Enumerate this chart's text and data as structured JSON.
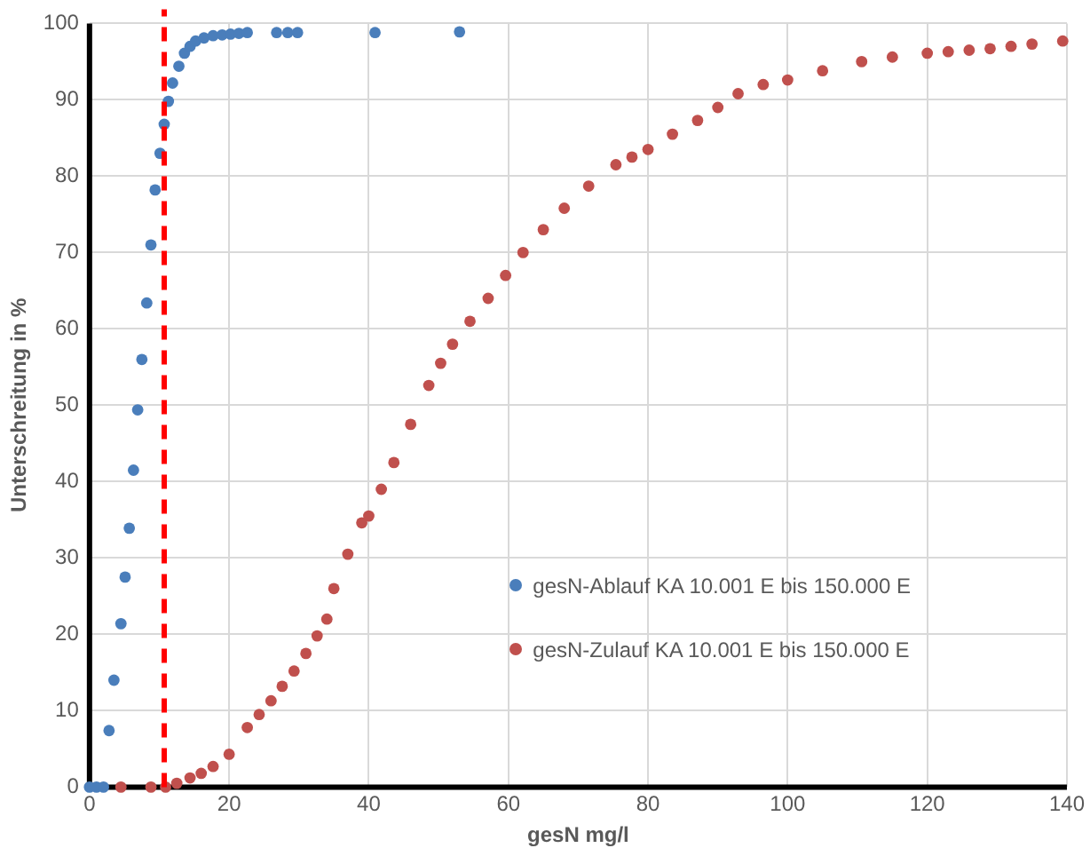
{
  "chart_data": {
    "type": "scatter",
    "xlabel": "gesN mg/l",
    "ylabel": "Unterschreitung in %",
    "xlim": [
      0,
      140
    ],
    "xticks": [
      0,
      20,
      40,
      60,
      80,
      100,
      120,
      140
    ],
    "ylim": [
      0,
      100
    ],
    "yticks": [
      0,
      10,
      20,
      30,
      40,
      50,
      60,
      70,
      80,
      90,
      100
    ],
    "grid": true,
    "legend": "bottom right",
    "marker": "circle",
    "ref_lines": [
      {
        "axis": "x",
        "value": 10.7,
        "color": "#ff0000",
        "line_style": "dashed"
      }
    ],
    "series": [
      {
        "name": "gesN-Ablauf KA 10.001 E bis 150.000 E",
        "color": "#4a7ebb",
        "x": [
          0,
          1,
          2,
          2.8,
          3.5,
          4.5,
          5.1,
          5.7,
          6.3,
          6.9,
          7.5,
          8.2,
          8.8,
          9.4,
          10.1,
          10.7,
          11.3,
          11.9,
          12.8,
          13.6,
          14.4,
          15.2,
          16.4,
          17.7,
          19,
          20.2,
          21.4,
          22.6,
          26.8,
          28.4,
          29.8,
          40.9,
          53
        ],
        "values": [
          0,
          0,
          0,
          7.4,
          14,
          21.4,
          27.5,
          33.9,
          41.5,
          49.4,
          56,
          63.4,
          71,
          78.2,
          83,
          86.8,
          89.8,
          92.2,
          94.4,
          96.1,
          97,
          97.7,
          98.1,
          98.4,
          98.5,
          98.6,
          98.7,
          98.8,
          98.8,
          98.8,
          98.8,
          98.8,
          98.9
        ]
      },
      {
        "name": "gesN-Zulauf KA 10.001 E bis 150.000 E",
        "color": "#c0504d",
        "x": [
          4.5,
          8.8,
          10.9,
          12.5,
          14.4,
          16,
          17.7,
          20,
          22.6,
          24.3,
          26,
          27.6,
          29.3,
          31,
          32.6,
          34,
          35,
          37,
          39,
          40,
          41.8,
          43.6,
          46,
          48.6,
          50.3,
          52,
          54.5,
          57.1,
          59.6,
          62.1,
          65,
          68,
          71.5,
          75.4,
          77.7,
          80,
          83.5,
          87.1,
          90,
          92.9,
          96.5,
          100,
          105,
          110.6,
          115,
          120,
          123,
          126,
          129,
          132,
          135,
          139.4
        ],
        "values": [
          0,
          0,
          0,
          0.5,
          1.2,
          1.8,
          2.7,
          4.3,
          7.8,
          9.5,
          11.3,
          13.2,
          15.2,
          17.5,
          19.8,
          22,
          26,
          30.5,
          34.6,
          35.5,
          39,
          42.5,
          47.5,
          52.6,
          55.5,
          58,
          61,
          64,
          67,
          70,
          73,
          75.8,
          78.7,
          81.5,
          82.5,
          83.5,
          85.5,
          87.3,
          89,
          90.8,
          92,
          92.6,
          93.8,
          95,
          95.6,
          96.1,
          96.3,
          96.5,
          96.7,
          97,
          97.3,
          97.7
        ]
      }
    ]
  }
}
